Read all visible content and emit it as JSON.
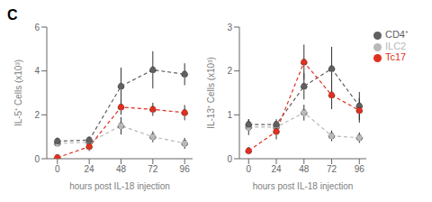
{
  "chart_data": [
    {
      "type": "line",
      "annotation": "C",
      "x": [
        0,
        24,
        48,
        72,
        96
      ],
      "xlim": [
        -8,
        102
      ],
      "xticks": [
        0,
        24,
        48,
        72,
        96
      ],
      "ylim": [
        0,
        6
      ],
      "yticks": [
        0,
        2,
        4,
        6
      ],
      "xlabel": "hours post IL-18 injection",
      "ylabel": "IL-5⁺ Cells (x10³)",
      "series": [
        {
          "name": "ILC2",
          "color": "#b8b8b8",
          "marker": "circle",
          "line_style": "dashed",
          "values": [
            0.7,
            0.75,
            1.5,
            1.0,
            0.7
          ],
          "errors": [
            0.15,
            0.15,
            0.4,
            0.25,
            0.25
          ]
        },
        {
          "name": "CD4⁺",
          "color": "#606060",
          "marker": "circle",
          "line_style": "dashed",
          "values": [
            0.8,
            0.85,
            3.3,
            4.05,
            3.85
          ],
          "errors": [
            0.15,
            0.15,
            0.85,
            0.85,
            0.5
          ]
        },
        {
          "name": "Tc17",
          "color": "#e03020",
          "marker": "circle",
          "line_style": "dashed",
          "values": [
            0.05,
            0.55,
            2.35,
            2.25,
            2.1
          ],
          "errors": [
            0.04,
            0.2,
            0.35,
            0.3,
            0.35
          ]
        }
      ]
    },
    {
      "type": "line",
      "x": [
        0,
        24,
        48,
        72,
        96
      ],
      "xlim": [
        -8,
        102
      ],
      "xticks": [
        0,
        24,
        48,
        72,
        96
      ],
      "ylim": [
        0,
        3
      ],
      "yticks": [
        0,
        1,
        2,
        3
      ],
      "xlabel": "hours post IL-18 injection",
      "ylabel": "IL-13⁺ Cells (x10³)",
      "legend": "upper right",
      "series": [
        {
          "name": "ILC2",
          "color": "#b8b8b8",
          "marker": "circle",
          "line_style": "dashed",
          "values": [
            0.72,
            0.72,
            1.05,
            0.52,
            0.48
          ],
          "errors": [
            0.18,
            0.12,
            0.18,
            0.12,
            0.12
          ]
        },
        {
          "name": "CD4⁺",
          "color": "#606060",
          "marker": "circle",
          "line_style": "dashed",
          "values": [
            0.78,
            0.78,
            1.65,
            2.05,
            1.2
          ],
          "errors": [
            0.12,
            0.12,
            0.3,
            0.5,
            0.32
          ]
        },
        {
          "name": "Tc17",
          "color": "#e03020",
          "marker": "circle",
          "line_style": "dashed",
          "values": [
            0.18,
            0.62,
            2.2,
            1.45,
            1.1
          ],
          "errors": [
            0.08,
            0.18,
            0.4,
            0.32,
            0.28
          ]
        }
      ]
    }
  ]
}
